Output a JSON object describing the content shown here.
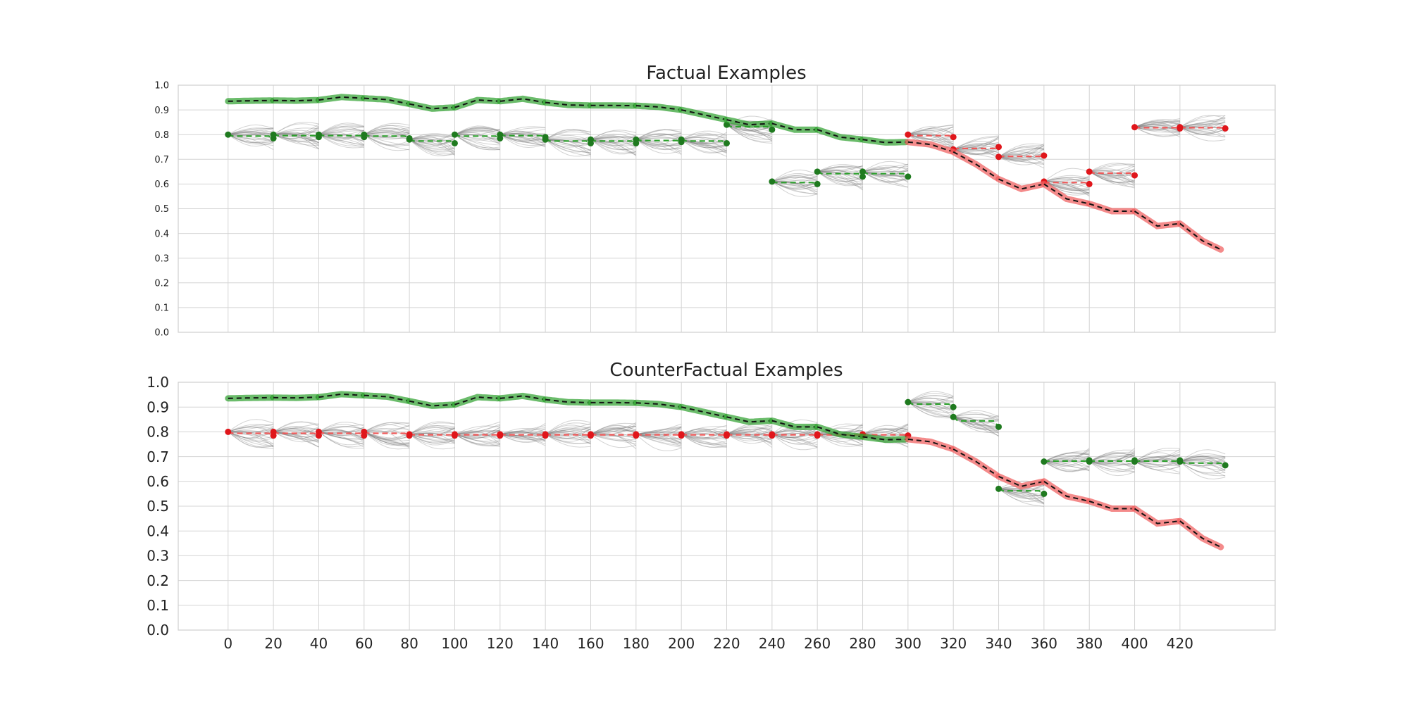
{
  "chart_data": [
    {
      "type": "line",
      "title": "Factual Examples",
      "xlim": [
        -22,
        462
      ],
      "ylim": [
        0,
        1.0
      ],
      "yticks": [
        "0.0",
        "0.1",
        "0.2",
        "0.3",
        "0.4",
        "0.5",
        "0.6",
        "0.7",
        "0.8",
        "0.9",
        "1.0"
      ],
      "xticks": [],
      "grid": true,
      "colors": {
        "good": "#2ca02c",
        "bad": "#f05a5a",
        "good_dot": "#1f7a1f",
        "bad_dot": "#e0161b",
        "ensemble": "#808080",
        "mean": "#111111"
      },
      "series": [
        {
          "role": "history",
          "x": [
            0,
            10,
            20,
            30,
            40,
            50,
            60,
            70,
            80,
            90,
            100,
            110,
            120,
            130,
            140,
            150,
            160,
            170,
            180,
            190,
            200,
            210,
            220,
            230,
            240,
            250,
            260,
            270,
            280,
            290,
            300,
            310,
            320,
            330,
            340,
            350,
            360,
            370,
            380,
            390,
            400,
            410,
            420,
            430,
            438
          ],
          "y": [
            0.935,
            0.937,
            0.938,
            0.937,
            0.94,
            0.952,
            0.947,
            0.942,
            0.924,
            0.905,
            0.91,
            0.94,
            0.935,
            0.945,
            0.93,
            0.92,
            0.918,
            0.918,
            0.917,
            0.912,
            0.9,
            0.88,
            0.86,
            0.84,
            0.845,
            0.82,
            0.82,
            0.79,
            0.78,
            0.768,
            0.77,
            0.76,
            0.73,
            0.68,
            0.62,
            0.58,
            0.6,
            0.54,
            0.52,
            0.49,
            0.49,
            0.43,
            0.44,
            0.37,
            0.335
          ],
          "segments": [
            {
              "x0": 0,
              "x1": 20,
              "good": true
            },
            {
              "x0": 20,
              "x1": 40,
              "good": true
            },
            {
              "x0": 40,
              "x1": 60,
              "good": true
            },
            {
              "x0": 60,
              "x1": 80,
              "good": true
            },
            {
              "x0": 80,
              "x1": 100,
              "good": true
            },
            {
              "x0": 100,
              "x1": 120,
              "good": true
            },
            {
              "x0": 120,
              "x1": 140,
              "good": true
            },
            {
              "x0": 140,
              "x1": 160,
              "good": true
            },
            {
              "x0": 160,
              "x1": 180,
              "good": true
            },
            {
              "x0": 180,
              "x1": 200,
              "good": true
            },
            {
              "x0": 200,
              "x1": 220,
              "good": true
            },
            {
              "x0": 220,
              "x1": 240,
              "good": true
            },
            {
              "x0": 240,
              "x1": 260,
              "good": true
            },
            {
              "x0": 260,
              "x1": 280,
              "good": true
            },
            {
              "x0": 280,
              "x1": 300,
              "good": true
            },
            {
              "x0": 300,
              "x1": 320,
              "good": false
            },
            {
              "x0": 320,
              "x1": 340,
              "good": false
            },
            {
              "x0": 340,
              "x1": 360,
              "good": false
            },
            {
              "x0": 360,
              "x1": 380,
              "good": false
            },
            {
              "x0": 380,
              "x1": 400,
              "good": false
            },
            {
              "x0": 400,
              "x1": 420,
              "good": false
            },
            {
              "x0": 420,
              "x1": 440,
              "good": false
            }
          ]
        }
      ],
      "forecasts": [
        {
          "x0": 0,
          "x1": 20,
          "y0": 0.8,
          "y1": 0.785,
          "good": true
        },
        {
          "x0": 20,
          "x1": 40,
          "y0": 0.8,
          "y1": 0.79,
          "good": true
        },
        {
          "x0": 40,
          "x1": 60,
          "y0": 0.8,
          "y1": 0.79,
          "good": true
        },
        {
          "x0": 60,
          "x1": 80,
          "y0": 0.8,
          "y1": 0.785,
          "good": true
        },
        {
          "x0": 80,
          "x1": 100,
          "y0": 0.78,
          "y1": 0.765,
          "good": true
        },
        {
          "x0": 100,
          "x1": 120,
          "y0": 0.8,
          "y1": 0.785,
          "good": true
        },
        {
          "x0": 120,
          "x1": 140,
          "y0": 0.8,
          "y1": 0.79,
          "good": true
        },
        {
          "x0": 140,
          "x1": 160,
          "y0": 0.78,
          "y1": 0.765,
          "good": true
        },
        {
          "x0": 160,
          "x1": 180,
          "y0": 0.78,
          "y1": 0.765,
          "good": true
        },
        {
          "x0": 180,
          "x1": 200,
          "y0": 0.78,
          "y1": 0.77,
          "good": true
        },
        {
          "x0": 200,
          "x1": 220,
          "y0": 0.78,
          "y1": 0.765,
          "good": true
        },
        {
          "x0": 220,
          "x1": 240,
          "y0": 0.84,
          "y1": 0.82,
          "good": true
        },
        {
          "x0": 240,
          "x1": 260,
          "y0": 0.61,
          "y1": 0.6,
          "good": true
        },
        {
          "x0": 260,
          "x1": 280,
          "y0": 0.65,
          "y1": 0.63,
          "good": true
        },
        {
          "x0": 280,
          "x1": 300,
          "y0": 0.65,
          "y1": 0.63,
          "good": true
        },
        {
          "x0": 300,
          "x1": 320,
          "y0": 0.8,
          "y1": 0.79,
          "good": false
        },
        {
          "x0": 320,
          "x1": 340,
          "y0": 0.74,
          "y1": 0.75,
          "good": false
        },
        {
          "x0": 340,
          "x1": 360,
          "y0": 0.71,
          "y1": 0.715,
          "good": false
        },
        {
          "x0": 360,
          "x1": 380,
          "y0": 0.61,
          "y1": 0.6,
          "good": false
        },
        {
          "x0": 380,
          "x1": 400,
          "y0": 0.65,
          "y1": 0.635,
          "good": false
        },
        {
          "x0": 400,
          "x1": 420,
          "y0": 0.83,
          "y1": 0.825,
          "good": false
        },
        {
          "x0": 420,
          "x1": 440,
          "y0": 0.83,
          "y1": 0.825,
          "good": false
        }
      ]
    },
    {
      "type": "line",
      "title": "CounterFactual Examples",
      "xlim": [
        -22,
        462
      ],
      "ylim": [
        0,
        1.0
      ],
      "yticks": [
        "0.0",
        "0.1",
        "0.2",
        "0.3",
        "0.4",
        "0.5",
        "0.6",
        "0.7",
        "0.8",
        "0.9",
        "1.0"
      ],
      "xticks": [
        "0",
        "20",
        "40",
        "60",
        "80",
        "100",
        "120",
        "140",
        "160",
        "180",
        "200",
        "220",
        "240",
        "260",
        "280",
        "300",
        "320",
        "340",
        "360",
        "380",
        "400",
        "420"
      ],
      "grid": true,
      "colors": {
        "good": "#2ca02c",
        "bad": "#f05a5a",
        "good_dot": "#1f7a1f",
        "bad_dot": "#e0161b",
        "ensemble": "#808080",
        "mean": "#111111"
      },
      "series": [
        {
          "role": "history",
          "x": [
            0,
            10,
            20,
            30,
            40,
            50,
            60,
            70,
            80,
            90,
            100,
            110,
            120,
            130,
            140,
            150,
            160,
            170,
            180,
            190,
            200,
            210,
            220,
            230,
            240,
            250,
            260,
            270,
            280,
            290,
            300,
            310,
            320,
            330,
            340,
            350,
            360,
            370,
            380,
            390,
            400,
            410,
            420,
            430,
            438
          ],
          "y": [
            0.935,
            0.937,
            0.938,
            0.937,
            0.94,
            0.952,
            0.947,
            0.942,
            0.924,
            0.905,
            0.91,
            0.94,
            0.935,
            0.945,
            0.93,
            0.92,
            0.918,
            0.918,
            0.917,
            0.912,
            0.9,
            0.88,
            0.86,
            0.84,
            0.845,
            0.82,
            0.82,
            0.79,
            0.78,
            0.768,
            0.77,
            0.76,
            0.73,
            0.68,
            0.62,
            0.58,
            0.6,
            0.54,
            0.52,
            0.49,
            0.49,
            0.43,
            0.44,
            0.37,
            0.335
          ],
          "segments": [
            {
              "x0": 0,
              "x1": 20,
              "good": true
            },
            {
              "x0": 20,
              "x1": 40,
              "good": true
            },
            {
              "x0": 40,
              "x1": 60,
              "good": true
            },
            {
              "x0": 60,
              "x1": 80,
              "good": true
            },
            {
              "x0": 80,
              "x1": 100,
              "good": true
            },
            {
              "x0": 100,
              "x1": 120,
              "good": true
            },
            {
              "x0": 120,
              "x1": 140,
              "good": true
            },
            {
              "x0": 140,
              "x1": 160,
              "good": true
            },
            {
              "x0": 160,
              "x1": 180,
              "good": true
            },
            {
              "x0": 180,
              "x1": 200,
              "good": true
            },
            {
              "x0": 200,
              "x1": 220,
              "good": true
            },
            {
              "x0": 220,
              "x1": 240,
              "good": true
            },
            {
              "x0": 240,
              "x1": 260,
              "good": true
            },
            {
              "x0": 260,
              "x1": 280,
              "good": true
            },
            {
              "x0": 280,
              "x1": 300,
              "good": true
            },
            {
              "x0": 300,
              "x1": 320,
              "good": false
            },
            {
              "x0": 320,
              "x1": 340,
              "good": false
            },
            {
              "x0": 340,
              "x1": 360,
              "good": false
            },
            {
              "x0": 360,
              "x1": 380,
              "good": false
            },
            {
              "x0": 380,
              "x1": 400,
              "good": false
            },
            {
              "x0": 400,
              "x1": 420,
              "good": false
            },
            {
              "x0": 420,
              "x1": 440,
              "good": false
            }
          ]
        }
      ],
      "forecasts": [
        {
          "x0": 0,
          "x1": 20,
          "y0": 0.8,
          "y1": 0.785,
          "good": false
        },
        {
          "x0": 20,
          "x1": 40,
          "y0": 0.8,
          "y1": 0.785,
          "good": false
        },
        {
          "x0": 40,
          "x1": 60,
          "y0": 0.8,
          "y1": 0.785,
          "good": false
        },
        {
          "x0": 60,
          "x1": 80,
          "y0": 0.8,
          "y1": 0.785,
          "good": false
        },
        {
          "x0": 80,
          "x1": 100,
          "y0": 0.79,
          "y1": 0.785,
          "good": false
        },
        {
          "x0": 100,
          "x1": 120,
          "y0": 0.79,
          "y1": 0.785,
          "good": false
        },
        {
          "x0": 120,
          "x1": 140,
          "y0": 0.79,
          "y1": 0.785,
          "good": false
        },
        {
          "x0": 140,
          "x1": 160,
          "y0": 0.79,
          "y1": 0.785,
          "good": false
        },
        {
          "x0": 160,
          "x1": 180,
          "y0": 0.79,
          "y1": 0.785,
          "good": false
        },
        {
          "x0": 180,
          "x1": 200,
          "y0": 0.79,
          "y1": 0.785,
          "good": false
        },
        {
          "x0": 200,
          "x1": 220,
          "y0": 0.79,
          "y1": 0.785,
          "good": false
        },
        {
          "x0": 220,
          "x1": 240,
          "y0": 0.79,
          "y1": 0.785,
          "good": false
        },
        {
          "x0": 240,
          "x1": 260,
          "y0": 0.79,
          "y1": 0.785,
          "good": false
        },
        {
          "x0": 260,
          "x1": 280,
          "y0": 0.79,
          "y1": 0.785,
          "good": false
        },
        {
          "x0": 280,
          "x1": 300,
          "y0": 0.79,
          "y1": 0.785,
          "good": false
        },
        {
          "x0": 300,
          "x1": 320,
          "y0": 0.92,
          "y1": 0.9,
          "good": true
        },
        {
          "x0": 320,
          "x1": 340,
          "y0": 0.86,
          "y1": 0.82,
          "good": true
        },
        {
          "x0": 340,
          "x1": 360,
          "y0": 0.57,
          "y1": 0.55,
          "good": true
        },
        {
          "x0": 360,
          "x1": 380,
          "y0": 0.68,
          "y1": 0.685,
          "good": true
        },
        {
          "x0": 380,
          "x1": 400,
          "y0": 0.68,
          "y1": 0.685,
          "good": true
        },
        {
          "x0": 400,
          "x1": 420,
          "y0": 0.68,
          "y1": 0.685,
          "good": true
        },
        {
          "x0": 420,
          "x1": 440,
          "y0": 0.68,
          "y1": 0.665,
          "good": true
        }
      ]
    }
  ]
}
